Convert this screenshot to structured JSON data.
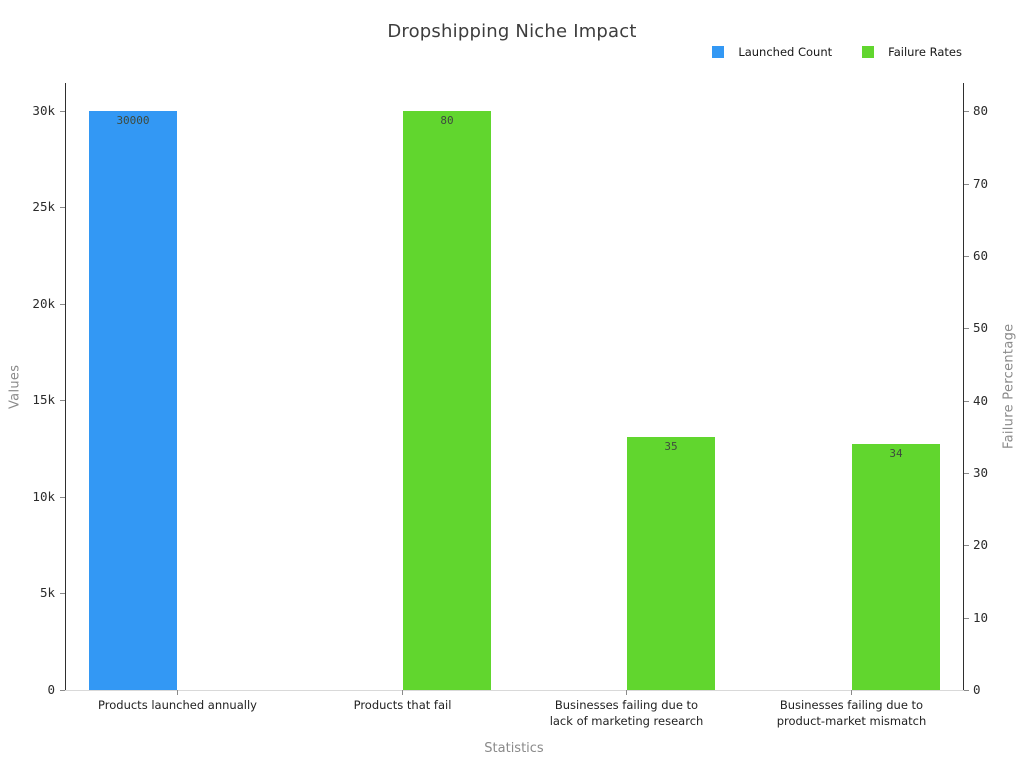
{
  "chart_data": {
    "type": "bar",
    "title": "Dropshipping Niche Impact",
    "xlabel": "Statistics",
    "legend_position": "top-right",
    "grid": false,
    "categories": [
      "Products launched annually",
      "Products that fail",
      "Businesses failing due to lack of marketing research",
      "Businesses failing due to product-market mismatch"
    ],
    "category_lines": [
      [
        "Products launched annually"
      ],
      [
        "Products that fail"
      ],
      [
        "Businesses failing due to",
        "lack of marketing research"
      ],
      [
        "Businesses failing due to",
        "product-market mismatch"
      ]
    ],
    "series": [
      {
        "name": "Launched Count",
        "color": "#3398f4",
        "axis": "left",
        "values": [
          30000,
          null,
          null,
          null
        ],
        "bar_labels": [
          "30000",
          null,
          null,
          null
        ]
      },
      {
        "name": "Failure Rates",
        "color": "#61d62e",
        "axis": "right",
        "values": [
          null,
          80,
          35,
          34
        ],
        "bar_labels": [
          null,
          "80",
          "35",
          "34"
        ]
      }
    ],
    "left_axis": {
      "title": "Values",
      "tick_labels": [
        "0",
        "5k",
        "10k",
        "15k",
        "20k",
        "25k",
        "30k"
      ],
      "tick_values": [
        0,
        5000,
        10000,
        15000,
        20000,
        25000,
        30000
      ],
      "range": [
        0,
        31450
      ]
    },
    "right_axis": {
      "title": "Failure Percentage",
      "tick_labels": [
        "0",
        "10",
        "20",
        "30",
        "40",
        "50",
        "60",
        "70",
        "80"
      ],
      "tick_values": [
        0,
        10,
        20,
        30,
        40,
        50,
        60,
        70,
        80
      ],
      "range": [
        0,
        83.9
      ]
    }
  }
}
